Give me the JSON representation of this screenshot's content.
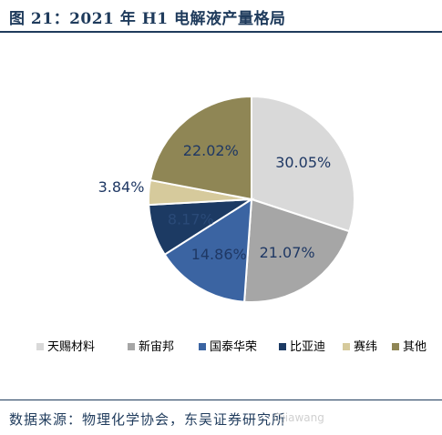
{
  "figure": {
    "title": "图 21：2021 年 H1 电解液产量格局",
    "source": "数据来源：物理化学协会，东吴证券研究所",
    "watermark": "Ojiawang"
  },
  "chart_data": {
    "type": "pie",
    "title": "",
    "legend_position": "bottom",
    "unit": "%",
    "slices": [
      {
        "name": "天赐材料",
        "value": 30.05,
        "label": "30.05%",
        "color": "#d9d9d9",
        "label_color": "#1f3864"
      },
      {
        "name": "新宙邦",
        "value": 21.07,
        "label": "21.07%",
        "color": "#a6a6a6",
        "label_color": "#1f3864"
      },
      {
        "name": "国泰华荣",
        "value": 14.86,
        "label": "14.86%",
        "color": "#3b64a2",
        "label_color": "#1f3864"
      },
      {
        "name": "比亚迪",
        "value": 8.17,
        "label": "8.17%",
        "color": "#1c3a63",
        "label_color": "#2a4a78"
      },
      {
        "name": "赛纬",
        "value": 3.84,
        "label": "3.84%",
        "color": "#d6ca9c",
        "label_color": "#1f3864"
      },
      {
        "name": "其他",
        "value": 22.02,
        "label": "22.02%",
        "color": "#8f8655",
        "label_color": "#1f3864"
      }
    ]
  }
}
